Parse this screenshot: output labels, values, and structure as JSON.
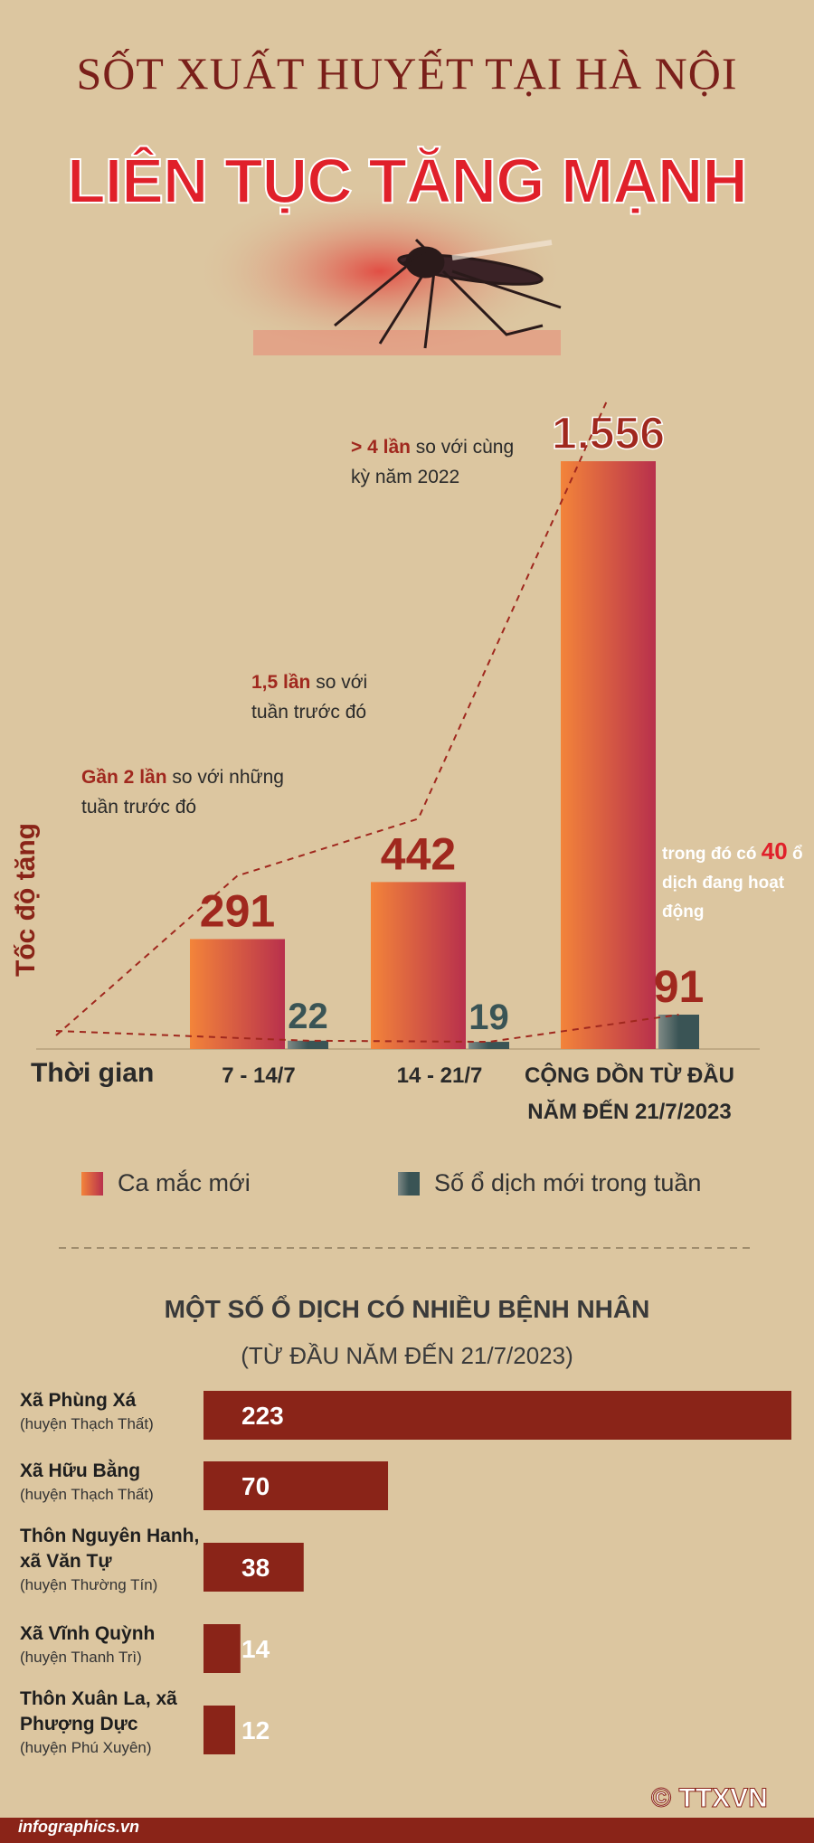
{
  "header": {
    "title": "SỐT XUẤT HUYẾT TẠI HÀ NỘI",
    "subtitle": "LIÊN TỤC TĂNG MẠNH"
  },
  "chart_data": [
    {
      "type": "bar",
      "y_label": "Tốc độ tăng",
      "x_label": "Thời gian",
      "categories": [
        "7 - 14/7",
        "14 - 21/7",
        "CỘNG DỒN TỪ ĐẦU NĂM ĐẾN 21/7/2023"
      ],
      "series": [
        {
          "name": "Ca mắc mới",
          "color": "#b8304c",
          "values": [
            291,
            442,
            1556
          ],
          "value_labels": [
            "291",
            "442",
            "1.556"
          ]
        },
        {
          "name": "Số ổ dịch mới trong tuần",
          "color": "#3a5455",
          "values": [
            22,
            19,
            91
          ]
        }
      ],
      "annotations": [
        {
          "highlight": "Gần 2 lần",
          "text": "so với những tuần trước đó"
        },
        {
          "highlight": "1,5 lần",
          "text": "so với tuần trước đó"
        },
        {
          "highlight": "> 4 lần",
          "text": "so với cùng kỳ năm 2022"
        }
      ],
      "note": {
        "before": "trong đó có",
        "highlight": "40",
        "after": "ổ dịch đang hoạt động"
      }
    },
    {
      "type": "hbar",
      "title": "MỘT SỐ Ổ DỊCH CÓ NHIỀU BỆNH NHÂN",
      "subtitle": "(TỪ ĐẦU NĂM ĐẾN 21/7/2023)",
      "categories": [
        "Xã Phùng Xá",
        "Xã Hữu Bằng",
        "Thôn Nguyên Hanh, xã Văn Tự",
        "Xã Vĩnh Quỳnh",
        "Thôn Xuân La, xã Phượng Dực"
      ],
      "districts": [
        "(huyện Thạch Thất)",
        "(huyện Thạch Thất)",
        "(huyện Thường Tín)",
        "(huyện Thanh Trì)",
        "(huyện Phú Xuyên)"
      ],
      "values": [
        223,
        70,
        38,
        14,
        12
      ],
      "color": "#8a2418"
    }
  ],
  "footer": {
    "source": "infographics.vn",
    "logo": "© TTXVN"
  }
}
